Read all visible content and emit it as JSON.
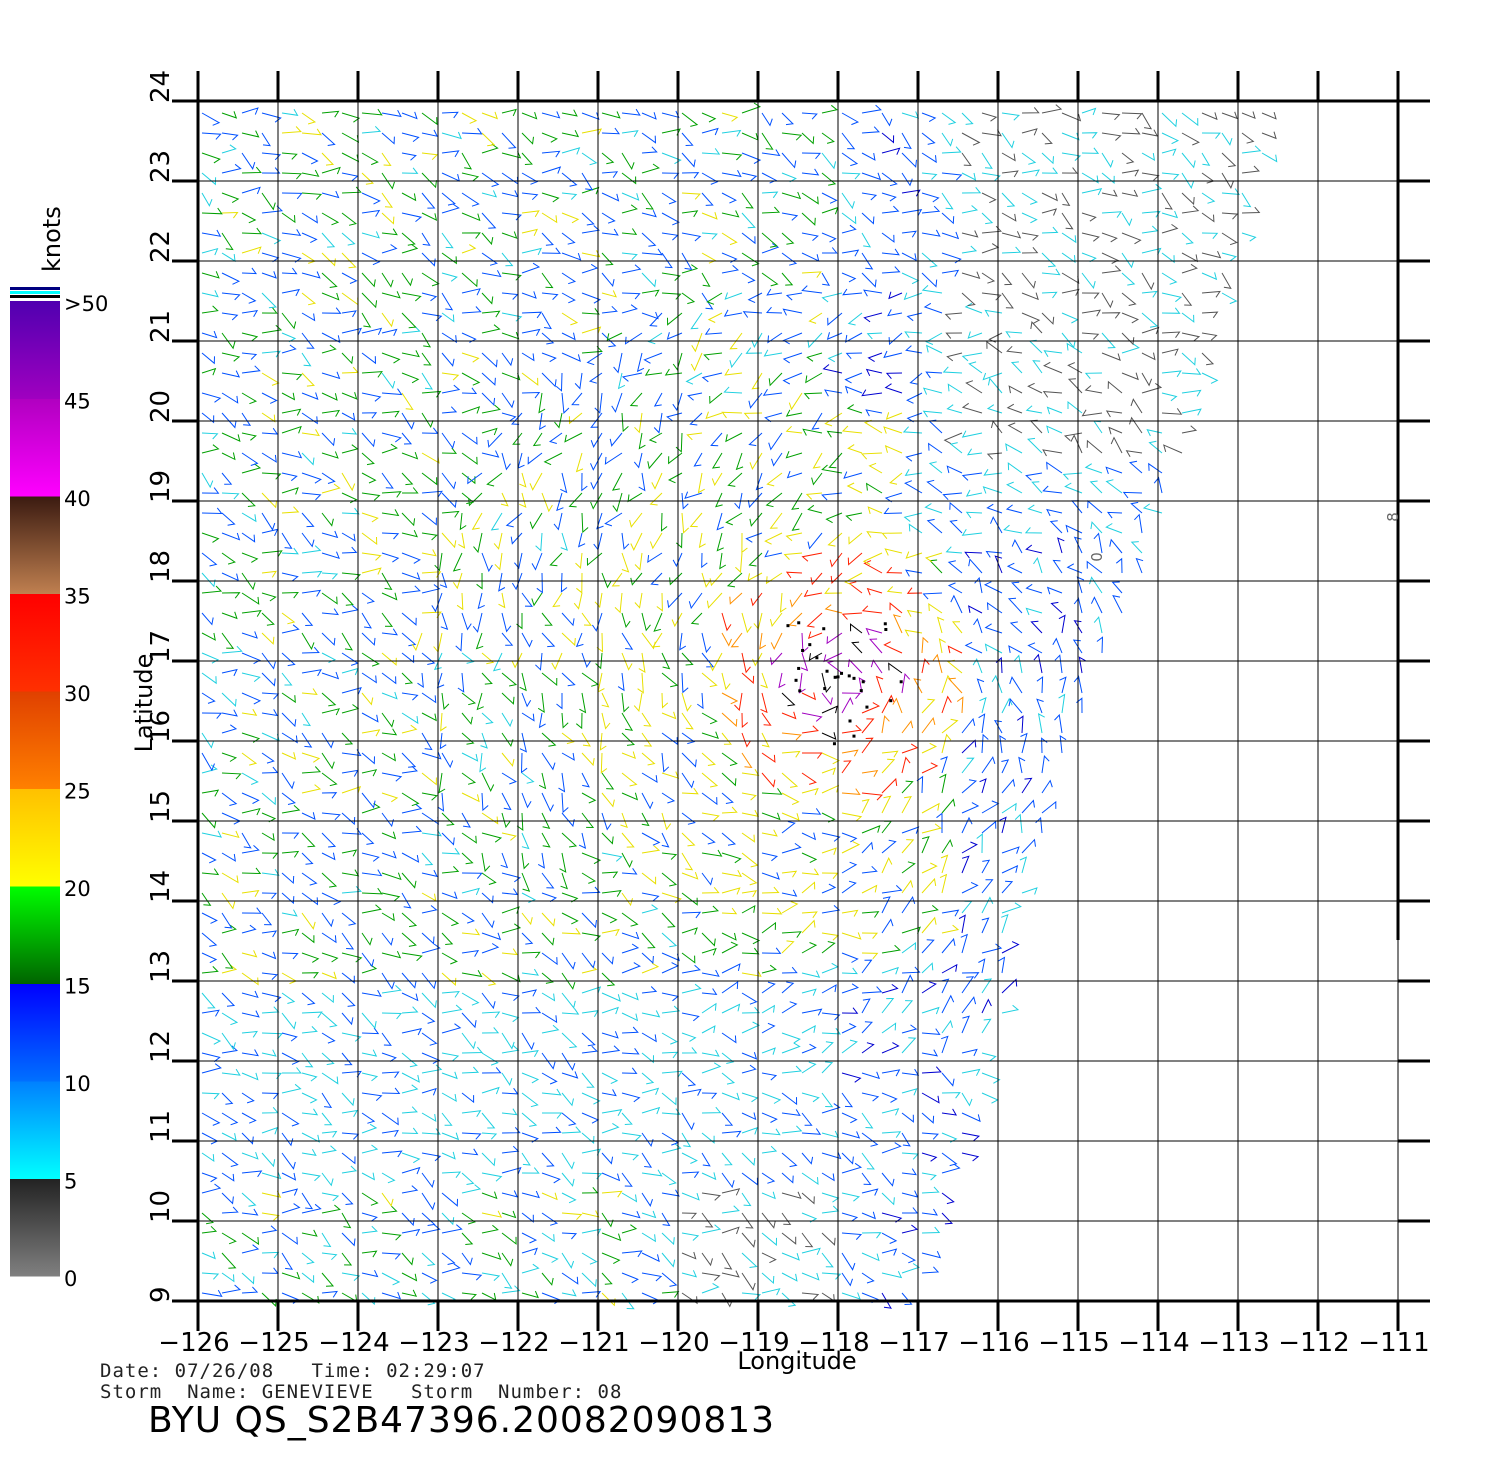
{
  "chart_data": {
    "type": "wind-barb-map",
    "xlabel": "Longitude",
    "ylabel": "Latitude",
    "xlim": [
      -126,
      -111
    ],
    "ylim": [
      9,
      24
    ],
    "x_ticks": [
      "-126",
      "-125",
      "-124",
      "-123",
      "-122",
      "-121",
      "-120",
      "-119",
      "-118",
      "-117",
      "-116",
      "-115",
      "-114",
      "-113",
      "-112",
      "-111"
    ],
    "y_ticks": [
      "9",
      "10",
      "11",
      "12",
      "13",
      "14",
      "15",
      "16",
      "17",
      "18",
      "19",
      "20",
      "21",
      "22",
      "23",
      "24"
    ],
    "grid": true,
    "swath_edge": [
      [
        -112.5,
        24
      ],
      [
        -113.3,
        21
      ],
      [
        -114.0,
        18.5
      ],
      [
        -115.1,
        16
      ],
      [
        -115.8,
        13.5
      ],
      [
        -116.0,
        12
      ],
      [
        -116.5,
        10.5
      ],
      [
        -117.0,
        9
      ]
    ],
    "storm_center": {
      "lon": -118.0,
      "lat": 16.8
    },
    "colorbar": {
      "title": "knots",
      "labels": [
        "0",
        "5",
        "10",
        "15",
        "20",
        "25",
        "30",
        "35",
        "40",
        "45",
        ">50"
      ],
      "bands": [
        {
          "from": 0,
          "to": 5,
          "colors": [
            "#808080",
            "#222222"
          ]
        },
        {
          "from": 5,
          "to": 10,
          "colors": [
            "#00ffff",
            "#0080ff"
          ]
        },
        {
          "from": 10,
          "to": 15,
          "colors": [
            "#0070ff",
            "#0000ff"
          ]
        },
        {
          "from": 15,
          "to": 20,
          "colors": [
            "#006400",
            "#00ff00"
          ]
        },
        {
          "from": 20,
          "to": 25,
          "colors": [
            "#ffff00",
            "#ffc000"
          ]
        },
        {
          "from": 25,
          "to": 30,
          "colors": [
            "#ff8000",
            "#e04000"
          ]
        },
        {
          "from": 30,
          "to": 35,
          "colors": [
            "#ff3000",
            "#ff0000"
          ]
        },
        {
          "from": 35,
          "to": 40,
          "colors": [
            "#c08050",
            "#3a1a10"
          ]
        },
        {
          "from": 40,
          "to": 45,
          "colors": [
            "#ff00ff",
            "#b000c0"
          ]
        },
        {
          "from": 45,
          "to": 50,
          "colors": [
            "#a000c0",
            "#5000b0"
          ]
        }
      ],
      "cap_colors": [
        "#000080",
        "#00ffff",
        "#000000"
      ]
    },
    "speed_colors": [
      "#555555",
      "#20d0e0",
      "#0050ff",
      "#0000d0",
      "#00a000",
      "#e8e000",
      "#ff9000",
      "#ff2000",
      "#a000c0",
      "#000000"
    ],
    "stray_marks": [
      {
        "lon": -114.7,
        "lat": 18.3,
        "text": "0"
      },
      {
        "lon": -111.0,
        "lat": 18.8,
        "text": "8"
      }
    ]
  },
  "footer": {
    "line1": "Date: 07/26/08   Time: 02:29:07",
    "line2": "Storm  Name: GENEVIEVE   Storm  Number: 08",
    "id": "BYU  QS_S2B47396.20082090813"
  }
}
